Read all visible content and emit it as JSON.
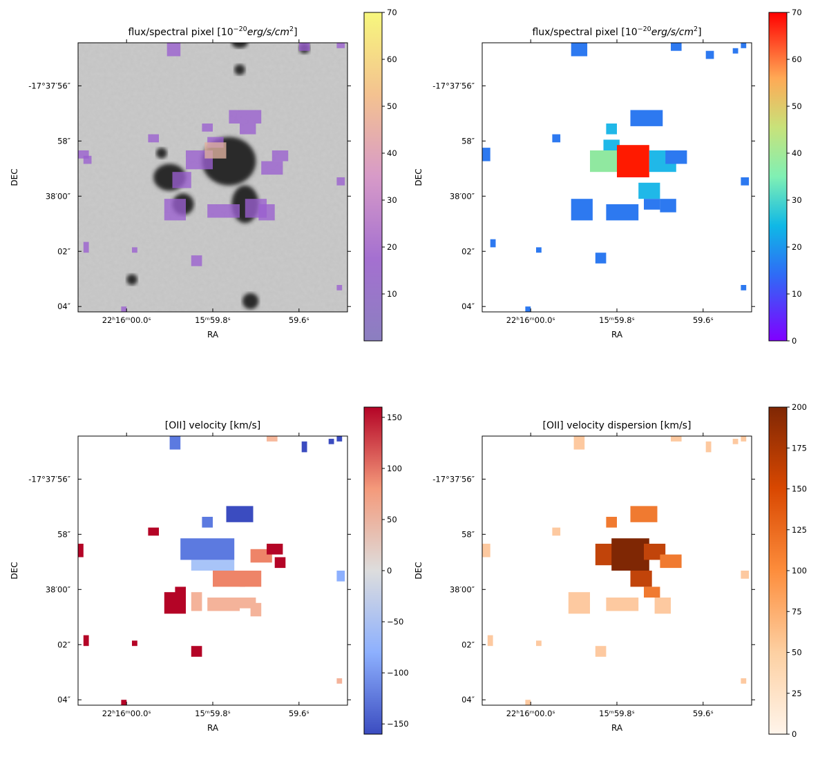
{
  "chart_data": [
    {
      "type": "heatmap",
      "title_prefix": "flux/spectral pixel [10",
      "title_exponent": "−20",
      "title_suffix": "erg/s/cm",
      "title_unit_power": "2",
      "title_close": "]",
      "xlabel": "RA",
      "ylabel": "DEC",
      "x_ticks": [
        "22ʰ16ᵐ00.0ˢ",
        "15ᵐ59.8ˢ",
        "59.6ˢ"
      ],
      "y_ticks": [
        "-17°37′56″",
        "58″",
        "38′00″",
        "02″",
        "04″"
      ],
      "colorbar_range": [
        0,
        70
      ],
      "colorbar_ticks": [
        "10",
        "20",
        "30",
        "40",
        "50",
        "60",
        "70"
      ],
      "colormap": "plasma-on-grayscale",
      "background": "grayscale HST image",
      "colors": {
        "low": "#7a4fc4",
        "mid": "#d89ab8",
        "high": "#f2f27a"
      }
    },
    {
      "type": "heatmap",
      "title_prefix": "flux/spectral pixel [10",
      "title_exponent": "−20",
      "title_suffix": "erg/s/cm",
      "title_unit_power": "2",
      "title_close": "]",
      "xlabel": "RA",
      "ylabel": "DEC",
      "x_ticks": [
        "22ʰ16ᵐ00.0ˢ",
        "15ᵐ59.8ˢ",
        "59.6ˢ"
      ],
      "y_ticks": [
        "-17°37′56″",
        "58″",
        "38′00″",
        "02″",
        "04″"
      ],
      "colorbar_range": [
        0,
        70
      ],
      "colorbar_ticks": [
        "0",
        "10",
        "20",
        "30",
        "40",
        "50",
        "60",
        "70"
      ],
      "colormap": "rainbow"
    },
    {
      "type": "heatmap",
      "title": "[OII] velocity [km/s]",
      "xlabel": "RA",
      "ylabel": "DEC",
      "x_ticks": [
        "22ʰ16ᵐ00.0ˢ",
        "15ᵐ59.8ˢ",
        "59.6ˢ"
      ],
      "y_ticks": [
        "-17°37′56″",
        "58″",
        "38′00″",
        "02″",
        "04″"
      ],
      "colorbar_range": [
        -160,
        160
      ],
      "colorbar_ticks": [
        "−150",
        "−100",
        "−50",
        "0",
        "50",
        "100",
        "150"
      ],
      "colormap": "coolwarm"
    },
    {
      "type": "heatmap",
      "title": "[OII] velocity dispersion [km/s]",
      "xlabel": "RA",
      "ylabel": "DEC",
      "x_ticks": [
        "22ʰ16ᵐ00.0ˢ",
        "15ᵐ59.8ˢ",
        "59.6ˢ"
      ],
      "y_ticks": [
        "-17°37′56″",
        "58″",
        "38′00″",
        "02″",
        "04″"
      ],
      "colorbar_range": [
        0,
        200
      ],
      "colorbar_ticks": [
        "0",
        "25",
        "50",
        "75",
        "100",
        "125",
        "150",
        "175",
        "200"
      ],
      "colormap": "oranges"
    }
  ]
}
